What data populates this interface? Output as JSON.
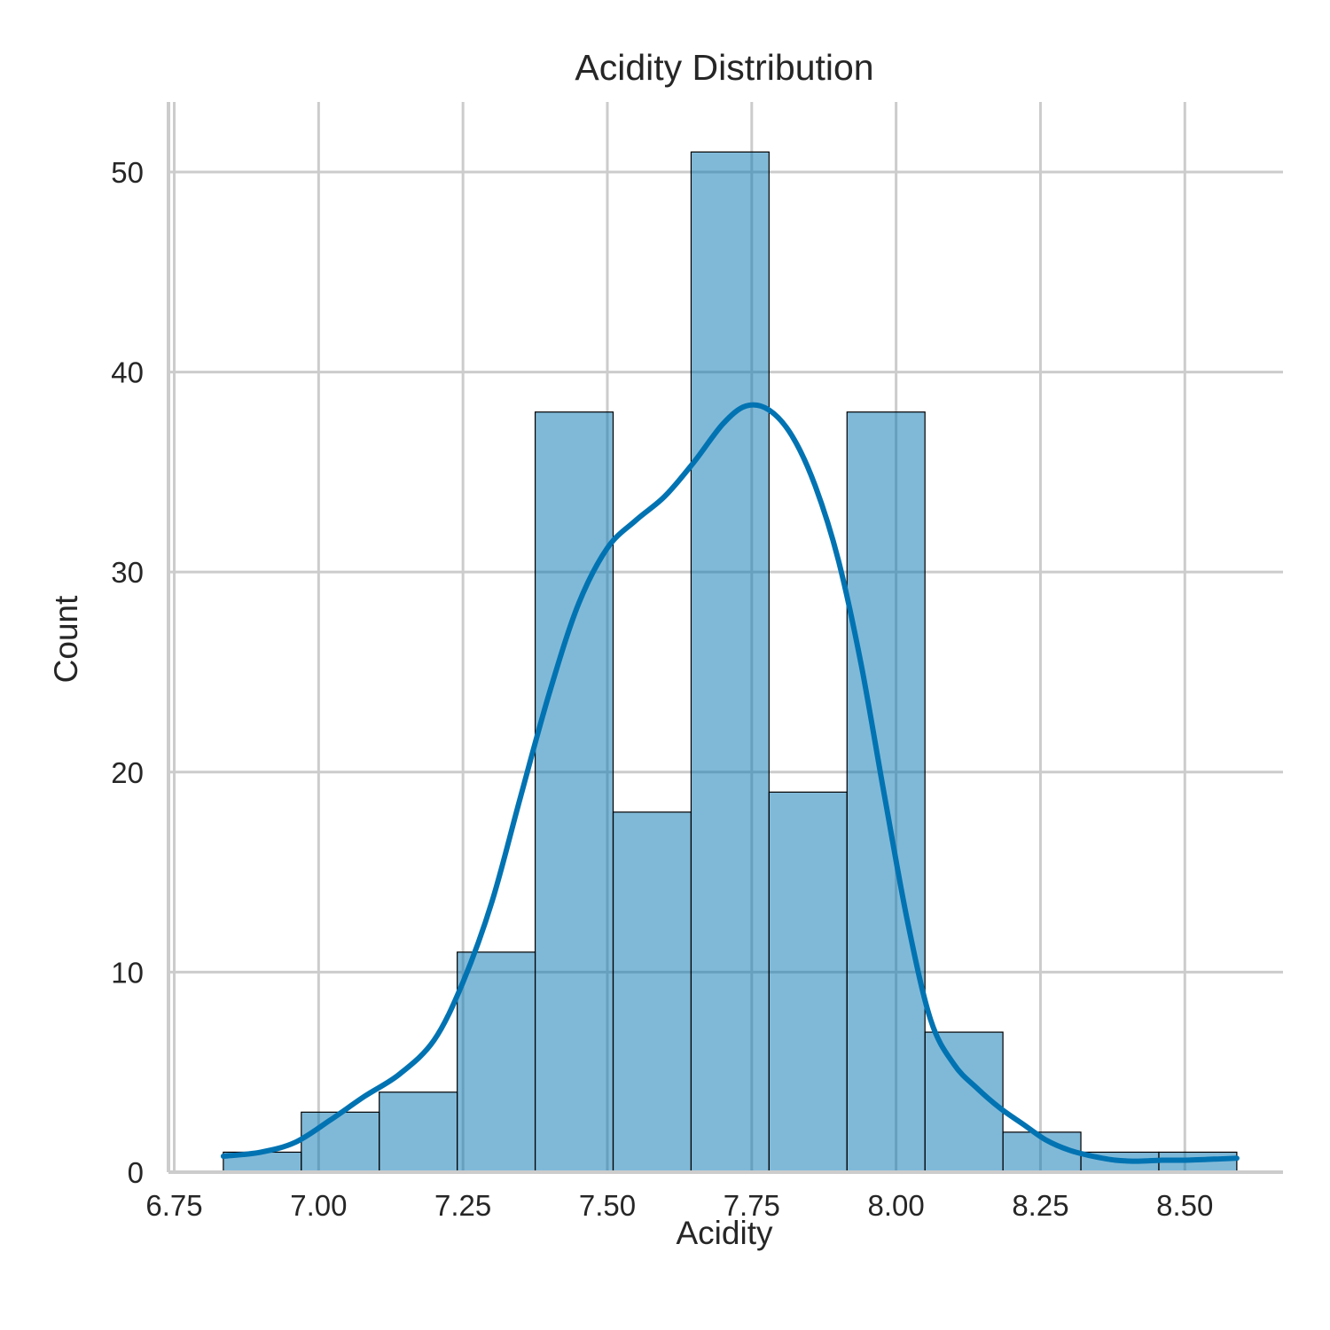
{
  "chart_data": {
    "type": "bar",
    "title": "Acidity Distribution",
    "xlabel": "Acidity",
    "ylabel": "Count",
    "xlim": [
      6.74,
      8.67
    ],
    "ylim": [
      0,
      53.5
    ],
    "xticks": [
      "6.75",
      "7.00",
      "7.25",
      "7.50",
      "7.75",
      "8.00",
      "8.25",
      "8.50"
    ],
    "yticks": [
      "0",
      "10",
      "20",
      "30",
      "40",
      "50"
    ],
    "grid": true,
    "bar_color": "#0173b2",
    "kde_color": "#0173b2",
    "bins": [
      {
        "x0": 6.835,
        "x1": 6.97,
        "count": 1
      },
      {
        "x0": 6.97,
        "x1": 7.105,
        "count": 3
      },
      {
        "x0": 7.105,
        "x1": 7.24,
        "count": 4
      },
      {
        "x0": 7.24,
        "x1": 7.375,
        "count": 11
      },
      {
        "x0": 7.375,
        "x1": 7.51,
        "count": 38
      },
      {
        "x0": 7.51,
        "x1": 7.645,
        "count": 18
      },
      {
        "x0": 7.645,
        "x1": 7.78,
        "count": 51
      },
      {
        "x0": 7.78,
        "x1": 7.915,
        "count": 19
      },
      {
        "x0": 7.915,
        "x1": 8.05,
        "count": 38
      },
      {
        "x0": 8.05,
        "x1": 8.185,
        "count": 7
      },
      {
        "x0": 8.185,
        "x1": 8.32,
        "count": 2
      },
      {
        "x0": 8.32,
        "x1": 8.455,
        "count": 1
      },
      {
        "x0": 8.455,
        "x1": 8.59,
        "count": 1
      }
    ],
    "kde": {
      "x": [
        6.835,
        6.9,
        6.96,
        7.02,
        7.08,
        7.14,
        7.2,
        7.25,
        7.3,
        7.35,
        7.4,
        7.45,
        7.5,
        7.55,
        7.6,
        7.65,
        7.7,
        7.74,
        7.78,
        7.82,
        7.86,
        7.9,
        7.94,
        7.98,
        8.02,
        8.06,
        8.1,
        8.14,
        8.18,
        8.22,
        8.26,
        8.3,
        8.34,
        8.38,
        8.42,
        8.46,
        8.5,
        8.55,
        8.59
      ],
      "y": [
        0.8,
        1.0,
        1.5,
        2.6,
        3.8,
        4.9,
        6.6,
        9.5,
        13.5,
        18.8,
        24.0,
        28.4,
        31.2,
        32.6,
        33.8,
        35.5,
        37.4,
        38.3,
        38.1,
        36.8,
        34.3,
        30.6,
        25.3,
        18.8,
        12.5,
        7.6,
        5.4,
        4.2,
        3.2,
        2.4,
        1.6,
        1.1,
        0.8,
        0.6,
        0.55,
        0.6,
        0.6,
        0.65,
        0.7
      ]
    }
  }
}
